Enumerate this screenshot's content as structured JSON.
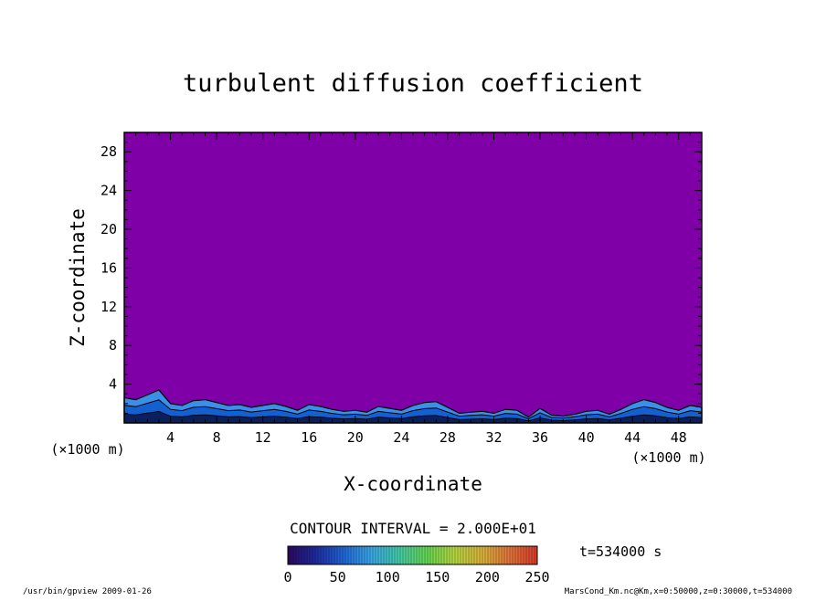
{
  "chart_data": {
    "type": "heatmap",
    "title": "turbulent diffusion coefficient",
    "xlabel": "X-coordinate",
    "ylabel": "Z-coordinate",
    "x_unit": "(×1000 m)",
    "y_unit": "(×1000 m)",
    "xlim": [
      0,
      50
    ],
    "ylim": [
      0,
      30
    ],
    "x_ticks": [
      "4",
      "8",
      "12",
      "16",
      "20",
      "24",
      "28",
      "32",
      "36",
      "40",
      "44",
      "48"
    ],
    "y_ticks": [
      "4",
      "8",
      "12",
      "16",
      "20",
      "24",
      "28"
    ],
    "contour_interval": "CONTOUR INTERVAL = 2.000E+01",
    "time_label": "t=534000 s",
    "colorbar": {
      "range": [
        0,
        250
      ],
      "ticks": [
        "0",
        "50",
        "100",
        "150",
        "200",
        "250"
      ],
      "colors": [
        "#2a0a5e",
        "#1f2a9e",
        "#1f66d6",
        "#3aa6e6",
        "#43c9a8",
        "#64d653",
        "#b4d63f",
        "#d9b23a",
        "#e0743a",
        "#d73a2a"
      ]
    },
    "background_value": 0,
    "colors": {
      "background_fill": "#8000a8",
      "layer_deep": "#0a1f5c",
      "layer_mid": "#1560d0",
      "layer_light": "#3a8fe8"
    },
    "boundary_layer": {
      "x_km": [
        0,
        1,
        2,
        3,
        4,
        5,
        6,
        7,
        8,
        9,
        10,
        11,
        12,
        13,
        14,
        15,
        16,
        17,
        18,
        19,
        20,
        21,
        22,
        23,
        24,
        25,
        26,
        27,
        28,
        29,
        30,
        31,
        32,
        33,
        34,
        35,
        36,
        37,
        38,
        39,
        40,
        41,
        42,
        43,
        44,
        45,
        46,
        47,
        48,
        49,
        50
      ],
      "top_km": [
        2.6,
        2.4,
        2.9,
        3.4,
        2.0,
        1.8,
        2.3,
        2.4,
        2.1,
        1.8,
        1.9,
        1.6,
        1.8,
        2.0,
        1.7,
        1.3,
        1.9,
        1.7,
        1.4,
        1.2,
        1.3,
        1.1,
        1.7,
        1.5,
        1.3,
        1.8,
        2.1,
        2.2,
        1.6,
        1.0,
        1.1,
        1.2,
        1.0,
        1.4,
        1.3,
        0.6,
        1.5,
        0.8,
        0.7,
        0.9,
        1.2,
        1.3,
        0.9,
        1.4,
        2.0,
        2.4,
        2.1,
        1.6,
        1.3,
        1.8,
        1.6
      ]
    }
  },
  "footer": {
    "left": "/usr/bin/gpview  2009-01-26",
    "right": "MarsCond_Km.nc@Km,x=0:50000,z=0:30000,t=534000"
  }
}
